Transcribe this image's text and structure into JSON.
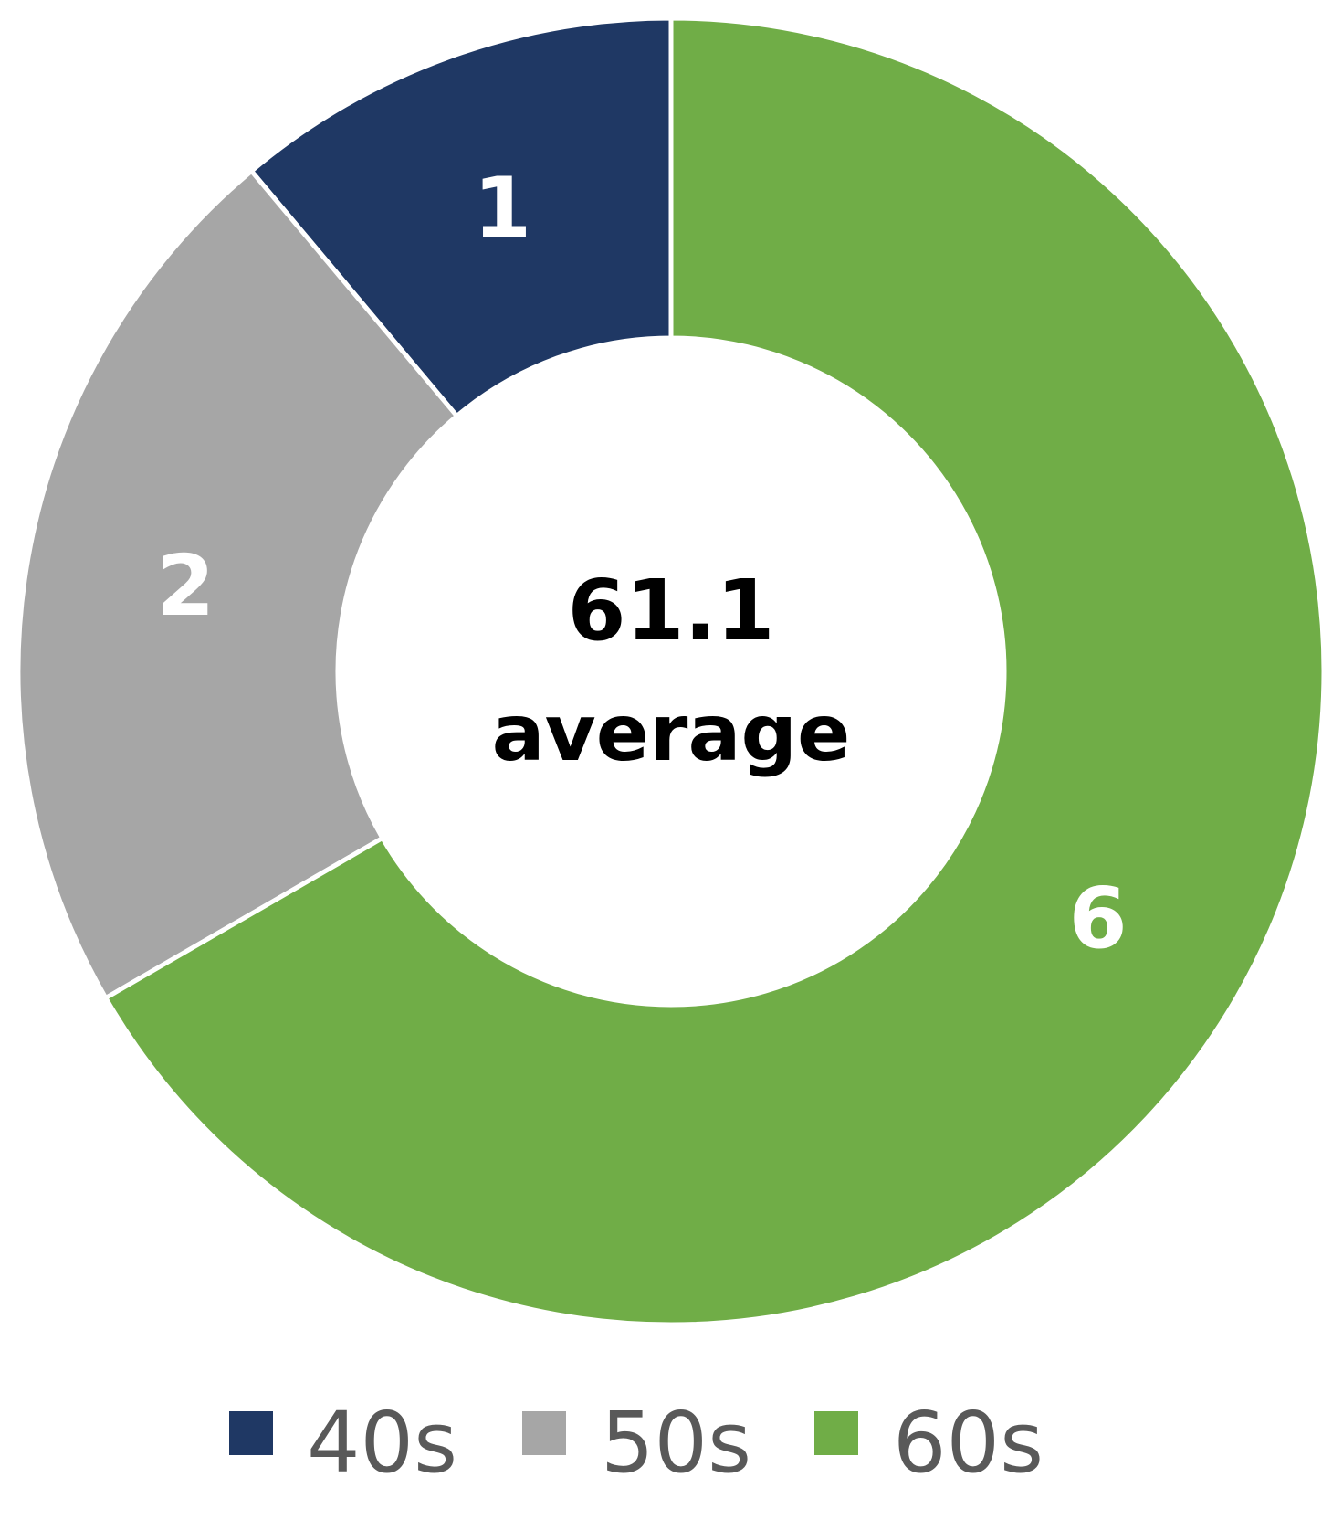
{
  "chart_data": {
    "type": "pie",
    "variant": "doughnut",
    "categories": [
      "40s",
      "50s",
      "60s"
    ],
    "values": [
      1,
      2,
      6
    ],
    "colors": [
      "#1f3864",
      "#a6a6a6",
      "#70ad47"
    ],
    "center_value": "61.1",
    "center_caption": "average",
    "legend": {
      "position": "bottom",
      "items": [
        "40s",
        "50s",
        "60s"
      ]
    }
  }
}
